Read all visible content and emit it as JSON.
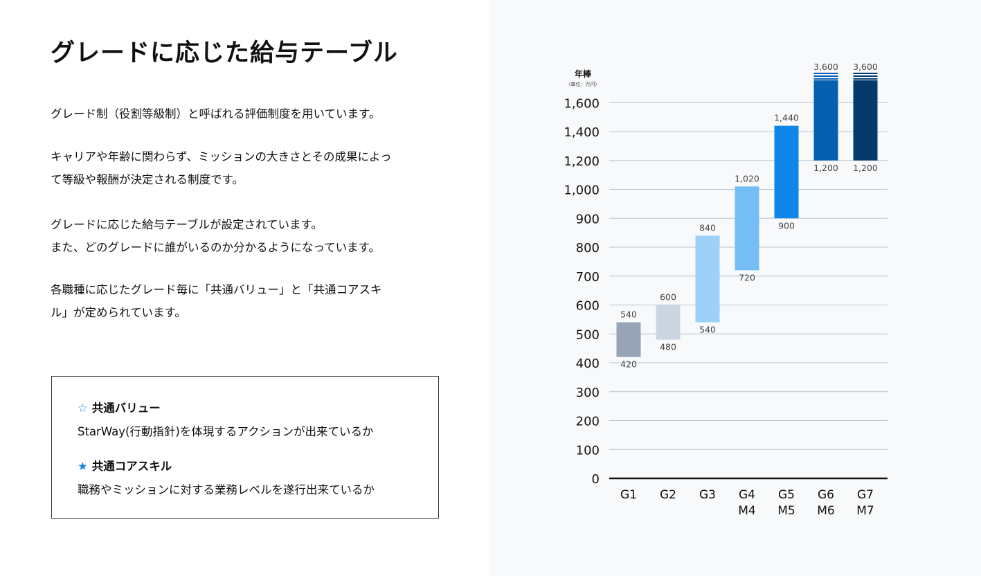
{
  "title": "グレードに応じた給与テーブル",
  "paragraphs": [
    [
      "グレード制（役割等級制）と呼ばれる評価制度を用いています。"
    ],
    [
      "キャリアや年齢に関わらず、ミッションの大きさとその成果によっ",
      "て等級や報酬が決定される制度です。"
    ],
    [
      "グレードに応じた給与テーブルが設定されています。",
      "また、どのグレードに誰がいるのか分かるようになっています。"
    ],
    [
      "各職種に応じたグレード毎に「共通バリュー」と「共通コアスキ",
      "ル」が定められています。"
    ]
  ],
  "box": {
    "items": [
      {
        "icon": "star-outline-icon",
        "glyph": "☆",
        "heading": "共通バリュー",
        "text": "StarWay(行動指針)を体現するアクションが出来ているか"
      },
      {
        "icon": "star-filled-icon",
        "glyph": "★",
        "heading": "共通コアスキル",
        "text": "職務やミッションに対する業務レベルを遂行出来ているか"
      }
    ]
  },
  "chart_data": {
    "type": "bar",
    "subtype": "floating-range",
    "ylabel": "年棒",
    "yunit": "（単位：万円）",
    "yticks": [
      0,
      100,
      200,
      300,
      400,
      500,
      600,
      700,
      800,
      900,
      1000,
      1200,
      1400,
      1600
    ],
    "ytick_labels": [
      "0",
      "100",
      "200",
      "300",
      "400",
      "500",
      "600",
      "700",
      "800",
      "900",
      "1,000",
      "1,200",
      "1,400",
      "1,600"
    ],
    "categories": [
      [
        "G1"
      ],
      [
        "G2"
      ],
      [
        "G3"
      ],
      [
        "G4",
        "M4"
      ],
      [
        "G5",
        "M5"
      ],
      [
        "G6",
        "M6"
      ],
      [
        "G7",
        "M7"
      ]
    ],
    "low": [
      420,
      480,
      540,
      720,
      900,
      1200,
      1200
    ],
    "high": [
      540,
      600,
      840,
      1020,
      1440,
      3600,
      3600
    ],
    "low_labels": [
      "420",
      "480",
      "540",
      "720",
      "900",
      "1,200",
      "1,200"
    ],
    "high_labels": [
      "540",
      "600",
      "840",
      "1,020",
      "1,440",
      "3,600",
      "3,600"
    ],
    "axis_break": [
      false,
      false,
      false,
      false,
      false,
      true,
      true
    ],
    "colors": [
      "#97a3b6",
      "#cbd5e1",
      "#9ed1f7",
      "#74bdf5",
      "#0f87ea",
      "#0560b1",
      "#043a6c"
    ],
    "grid": true
  }
}
